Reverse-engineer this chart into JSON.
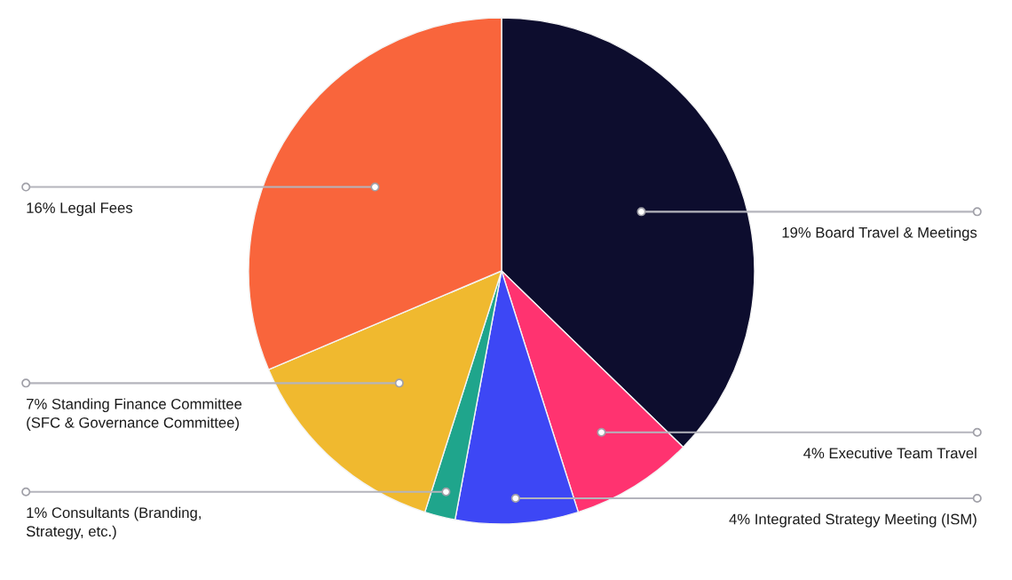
{
  "chart_data": {
    "type": "pie",
    "categories": [
      "Board Travel & Meetings",
      "Executive Team Travel",
      "Integrated Strategy Meeting (ISM)",
      "Consultants (Branding,\nStrategy, etc.)",
      "Standing Finance Committee\n(SFC & Governance Committee)",
      "Legal Fees"
    ],
    "values": [
      19,
      4,
      4,
      1,
      7,
      16
    ],
    "value_labels": [
      "19%",
      "4%",
      "4%",
      "1%",
      "7%",
      "16%"
    ],
    "colors": [
      "#0d0d2e",
      "#ff3370",
      "#3d47f5",
      "#1fa58c",
      "#f0b92f",
      "#f9653c"
    ]
  }
}
